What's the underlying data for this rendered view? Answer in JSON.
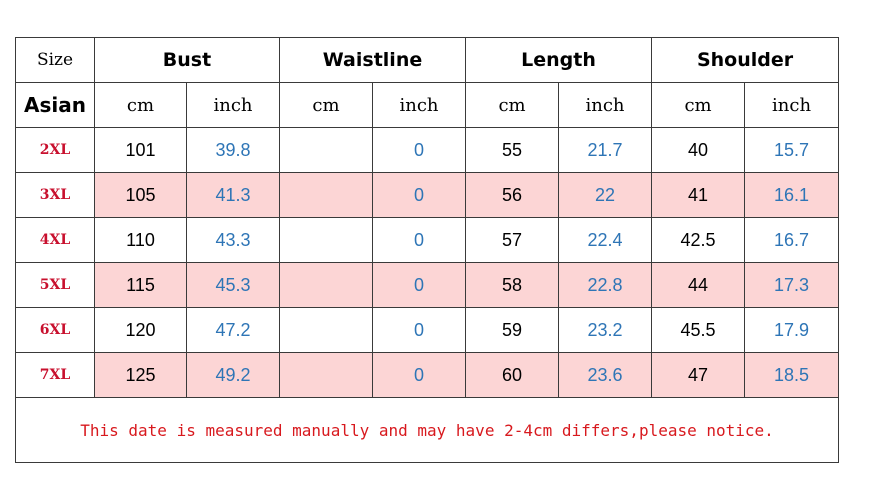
{
  "colors": {
    "size_label": "#c8102e",
    "inch_value": "#2e75b6",
    "shaded_row": "#fcd5d5",
    "note": "#d8191e"
  },
  "header": {
    "corner": "Size",
    "groups": [
      "Bust",
      "Waistline",
      "Length",
      "Shoulder"
    ],
    "region": "Asian",
    "units": [
      "cm",
      "inch",
      "cm",
      "inch",
      "cm",
      "inch",
      "cm",
      "inch"
    ]
  },
  "rows": [
    {
      "size": "2XL",
      "bust_cm": "101",
      "bust_in": "39.8",
      "waist_cm": "",
      "waist_in": "0",
      "length_cm": "55",
      "length_in": "21.7",
      "shoulder_cm": "40",
      "shoulder_in": "15.7"
    },
    {
      "size": "3XL",
      "bust_cm": "105",
      "bust_in": "41.3",
      "waist_cm": "",
      "waist_in": "0",
      "length_cm": "56",
      "length_in": "22",
      "shoulder_cm": "41",
      "shoulder_in": "16.1"
    },
    {
      "size": "4XL",
      "bust_cm": "110",
      "bust_in": "43.3",
      "waist_cm": "",
      "waist_in": "0",
      "length_cm": "57",
      "length_in": "22.4",
      "shoulder_cm": "42.5",
      "shoulder_in": "16.7"
    },
    {
      "size": "5XL",
      "bust_cm": "115",
      "bust_in": "45.3",
      "waist_cm": "",
      "waist_in": "0",
      "length_cm": "58",
      "length_in": "22.8",
      "shoulder_cm": "44",
      "shoulder_in": "17.3"
    },
    {
      "size": "6XL",
      "bust_cm": "120",
      "bust_in": "47.2",
      "waist_cm": "",
      "waist_in": "0",
      "length_cm": "59",
      "length_in": "23.2",
      "shoulder_cm": "45.5",
      "shoulder_in": "17.9"
    },
    {
      "size": "7XL",
      "bust_cm": "125",
      "bust_in": "49.2",
      "waist_cm": "",
      "waist_in": "0",
      "length_cm": "60",
      "length_in": "23.6",
      "shoulder_cm": "47",
      "shoulder_in": "18.5"
    }
  ],
  "note": "This date is measured manually and may have 2-4cm differs,please notice."
}
